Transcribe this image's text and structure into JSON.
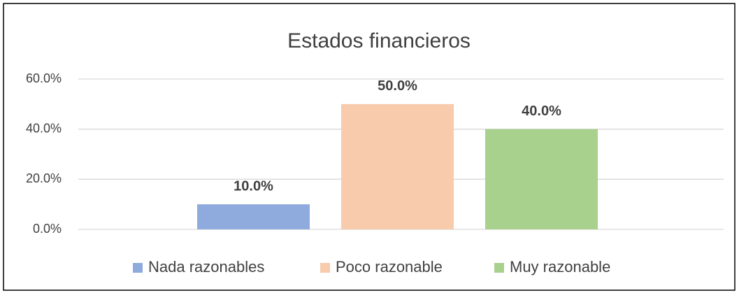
{
  "chart_data": {
    "type": "bar",
    "title": "Estados financieros",
    "categories": [
      null
    ],
    "series": [
      {
        "name": "Nada razonables",
        "color": "#8faadc",
        "values": [
          10
        ],
        "value_labels": [
          "10.0%"
        ]
      },
      {
        "name": "Poco razonable",
        "color": "#f8cbad",
        "values": [
          50
        ],
        "value_labels": [
          "50.0%"
        ]
      },
      {
        "name": "Muy razonable",
        "color": "#a9d18e",
        "values": [
          40
        ],
        "value_labels": [
          "40.0%"
        ]
      }
    ],
    "ylim": [
      0,
      60
    ],
    "yticks": [
      {
        "value": 0,
        "label": "0.0%"
      },
      {
        "value": 20,
        "label": "20.0%"
      },
      {
        "value": 40,
        "label": "40.0%"
      },
      {
        "value": 60,
        "label": "60.0%"
      }
    ],
    "grid": true,
    "legend": "bottom"
  }
}
